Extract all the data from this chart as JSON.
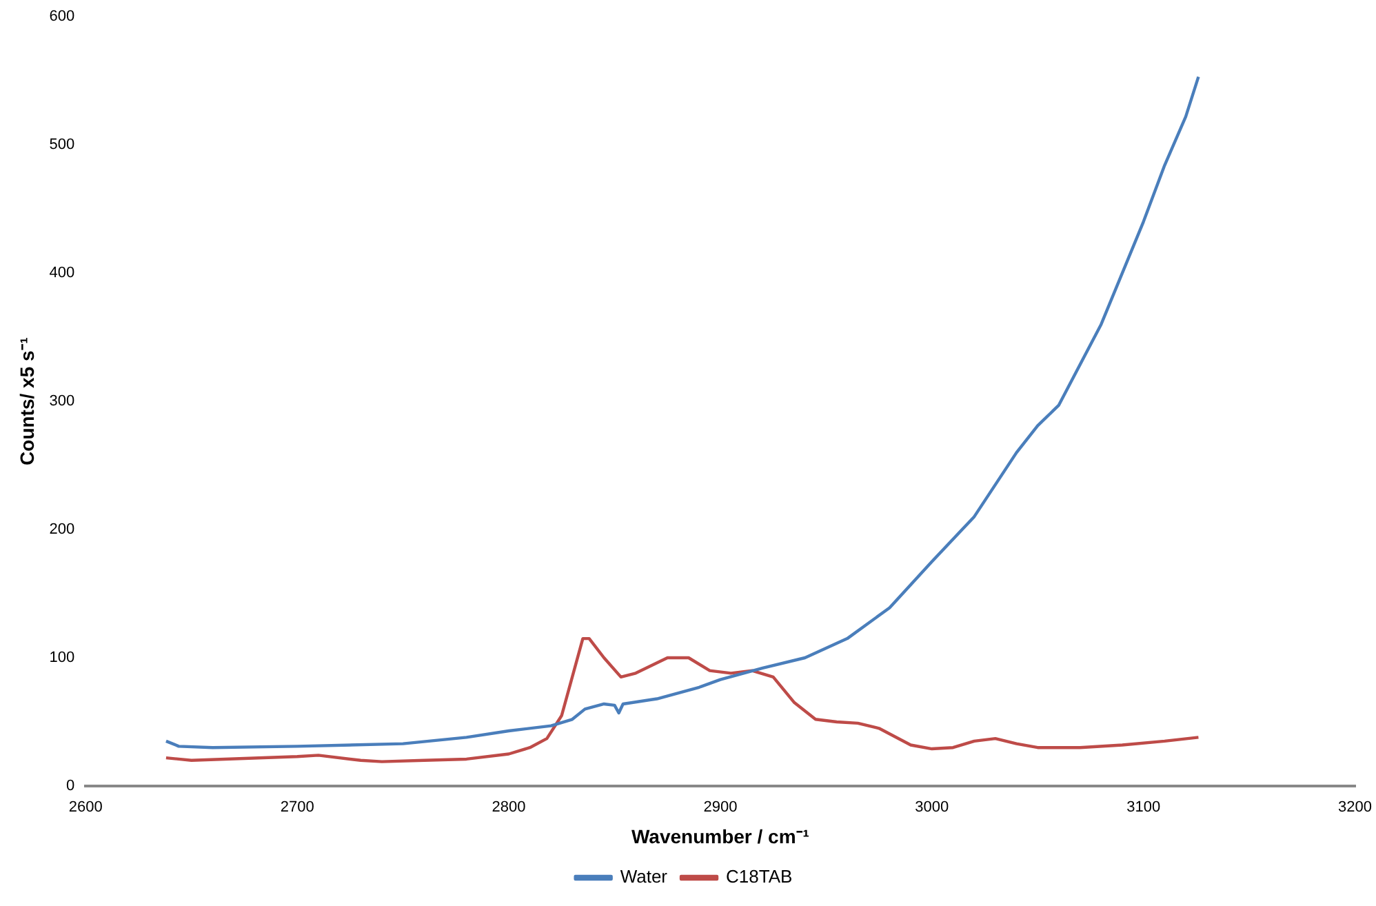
{
  "chart_data": {
    "type": "line",
    "xlabel": "Wavenumber / cm⁻¹",
    "ylabel": "Counts/ x5 s⁻¹",
    "xlim": [
      2600,
      3200
    ],
    "xticks": [
      2600,
      2700,
      2800,
      2900,
      3000,
      3100,
      3200
    ],
    "ylim": [
      0,
      600
    ],
    "yticks": [
      0,
      100,
      200,
      300,
      400,
      500,
      600
    ],
    "grid": false,
    "legend": "bottom",
    "marker": "none",
    "line_style": "solid",
    "series": [
      {
        "name": "Water",
        "color": "#4a7ebb",
        "x": [
          2638,
          2644,
          2660,
          2700,
          2750,
          2780,
          2800,
          2820,
          2830,
          2836,
          2845,
          2850,
          2852,
          2854,
          2870,
          2890,
          2900,
          2920,
          2940,
          2960,
          2980,
          3000,
          3020,
          3040,
          3050,
          3060,
          3080,
          3100,
          3110,
          3120,
          3126
        ],
        "values": [
          35,
          31,
          30,
          31,
          33,
          38,
          43,
          47,
          52,
          60,
          64,
          63,
          57,
          64,
          68,
          77,
          83,
          92,
          100,
          115,
          139,
          175,
          210,
          260,
          281,
          297,
          360,
          440,
          484,
          522,
          553
        ]
      },
      {
        "name": "C18TAB",
        "color": "#be4b48",
        "x": [
          2638,
          2650,
          2700,
          2710,
          2730,
          2740,
          2760,
          2780,
          2800,
          2810,
          2818,
          2825,
          2830,
          2835,
          2838,
          2845,
          2853,
          2860,
          2875,
          2885,
          2895,
          2905,
          2915,
          2925,
          2935,
          2945,
          2955,
          2965,
          2975,
          2990,
          3000,
          3010,
          3020,
          3030,
          3040,
          3050,
          3070,
          3090,
          3110,
          3126
        ],
        "values": [
          22,
          20,
          23,
          24,
          20,
          19,
          20,
          21,
          25,
          30,
          37,
          55,
          85,
          115,
          115,
          100,
          85,
          88,
          100,
          100,
          90,
          88,
          90,
          85,
          65,
          52,
          50,
          49,
          45,
          32,
          29,
          30,
          35,
          37,
          33,
          30,
          30,
          32,
          35,
          38
        ]
      }
    ]
  }
}
